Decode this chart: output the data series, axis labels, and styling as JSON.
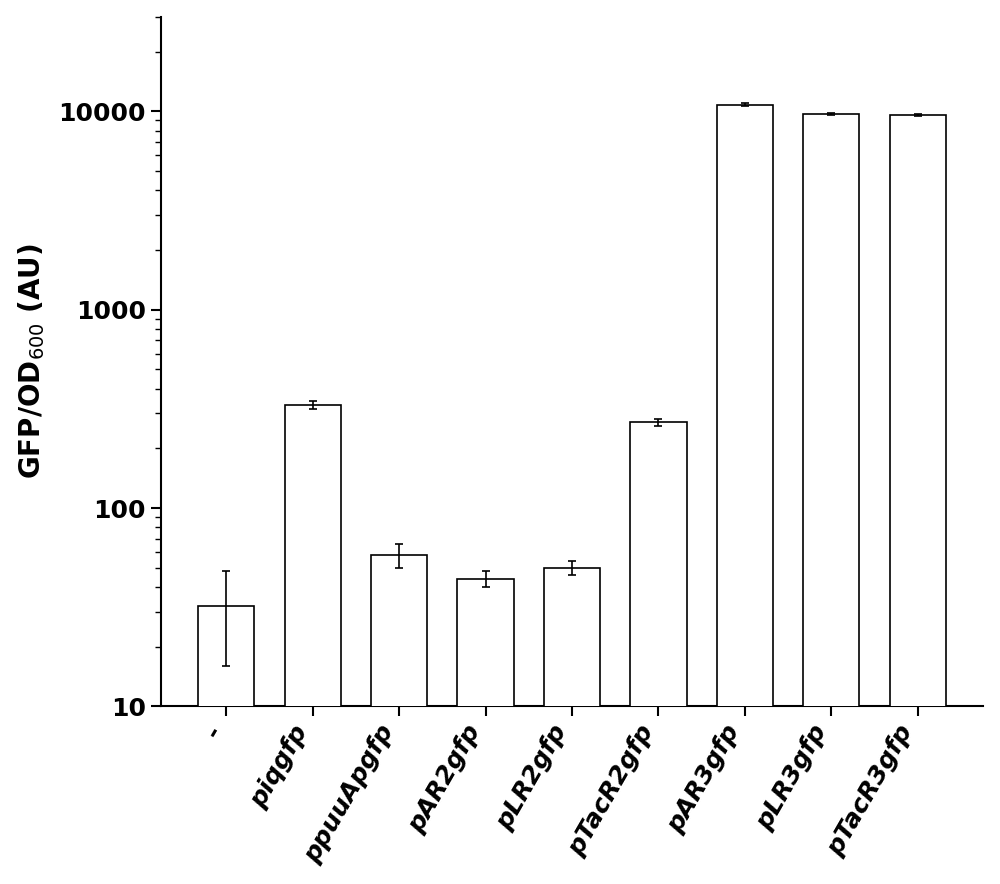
{
  "categories": [
    "-",
    "piqgfp",
    "ppuuApgfp",
    "pAR2gfp",
    "pLR2gfp",
    "pTacR2gfp",
    "pAR3gfp",
    "pLR3gfp",
    "pTacR3gfp"
  ],
  "values": [
    32,
    330,
    58,
    44,
    50,
    270,
    10800,
    9700,
    9600
  ],
  "errors": [
    16,
    15,
    8,
    4,
    4,
    12,
    170,
    100,
    90
  ],
  "bar_color": "#ffffff",
  "bar_edgecolor": "#000000",
  "ylabel": "GFP/OD$_{600}$ (AU)",
  "ylim_log": [
    10,
    30000
  ],
  "yticks": [
    10,
    100,
    1000,
    10000
  ],
  "ytick_labels": [
    "10",
    "100",
    "1000",
    "10000"
  ],
  "bar_width": 0.65,
  "figure_width": 10.0,
  "figure_height": 8.84,
  "background_color": "#ffffff",
  "spine_color": "#000000",
  "tick_color": "#000000",
  "label_fontsize": 20,
  "tick_fontsize": 18,
  "xtick_fontsize": 18,
  "capsize": 3,
  "elinewidth": 1.2,
  "ecolor": "#000000"
}
